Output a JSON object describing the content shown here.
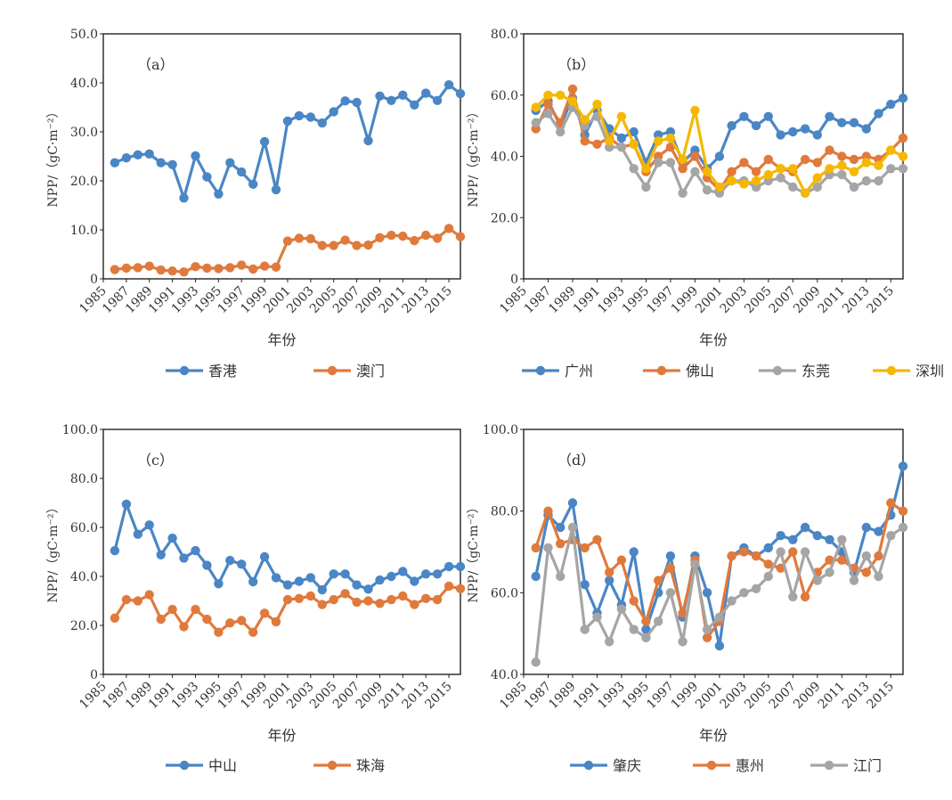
{
  "chart_data": [
    {
      "type": "line",
      "annotation": "（a）",
      "xlabel": "年份",
      "ylabel": "NPP/（gC·m⁻²）",
      "x": [
        1986,
        1987,
        1988,
        1989,
        1990,
        1991,
        1992,
        1993,
        1994,
        1995,
        1996,
        1997,
        1998,
        1999,
        2000,
        2001,
        2002,
        2003,
        2004,
        2005,
        2006,
        2007,
        2008,
        2009,
        2010,
        2011,
        2012,
        2013,
        2014,
        2015,
        2016
      ],
      "ylim": [
        0,
        50
      ],
      "yticks": [
        "0",
        "10.0",
        "20.0",
        "30.0",
        "40.0",
        "50.0"
      ],
      "xticks": [
        1985,
        1987,
        1989,
        1991,
        1993,
        1995,
        1997,
        1999,
        2001,
        2003,
        2005,
        2007,
        2009,
        2011,
        2013,
        2015
      ],
      "legend": "bottom",
      "series": [
        {
          "name": "香港",
          "color": "#4a86c5",
          "values": [
            23.7,
            24.7,
            25.3,
            25.5,
            23.7,
            23.3,
            16.5,
            25.1,
            20.8,
            17.3,
            23.7,
            21.8,
            19.3,
            28.0,
            18.2,
            32.2,
            33.3,
            33.0,
            31.8,
            34.1,
            36.3,
            36.0,
            28.2,
            37.3,
            36.4,
            37.5,
            35.5,
            37.9,
            36.4,
            39.6,
            37.8
          ]
        },
        {
          "name": "澳门",
          "color": "#e07a3c",
          "values": [
            1.9,
            2.2,
            2.3,
            2.6,
            1.8,
            1.6,
            1.4,
            2.5,
            2.2,
            2.1,
            2.3,
            2.8,
            2.0,
            2.6,
            2.4,
            7.7,
            8.3,
            8.2,
            6.8,
            6.8,
            7.9,
            6.8,
            6.9,
            8.4,
            8.9,
            8.7,
            7.8,
            8.9,
            8.3,
            10.3,
            8.6
          ]
        }
      ]
    },
    {
      "type": "line",
      "annotation": "（b）",
      "xlabel": "年份",
      "ylabel": "NPP/（gC·m⁻²）",
      "x": [
        1986,
        1987,
        1988,
        1989,
        1990,
        1991,
        1992,
        1993,
        1994,
        1995,
        1996,
        1997,
        1998,
        1999,
        2000,
        2001,
        2002,
        2003,
        2004,
        2005,
        2006,
        2007,
        2008,
        2009,
        2010,
        2011,
        2012,
        2013,
        2014,
        2015,
        2016
      ],
      "ylim": [
        0,
        80
      ],
      "yticks": [
        "0",
        "20.0",
        "40.0",
        "60.0",
        "80.0"
      ],
      "xticks": [
        1985,
        1987,
        1989,
        1991,
        1993,
        1995,
        1997,
        1999,
        2001,
        2003,
        2005,
        2007,
        2009,
        2011,
        2013,
        2015
      ],
      "legend": "bottom",
      "series": [
        {
          "name": "广州",
          "color": "#4a86c5",
          "values": [
            55,
            58,
            50,
            59,
            47,
            55,
            49,
            46,
            48,
            38,
            47,
            48,
            38,
            42,
            36,
            40,
            50,
            53,
            50,
            53,
            47,
            48,
            49,
            47,
            53,
            51,
            51,
            49,
            54,
            57,
            59
          ]
        },
        {
          "name": "佛山",
          "color": "#e07a3c",
          "values": [
            49,
            57,
            51,
            62,
            45,
            44,
            46,
            43,
            44,
            35,
            40,
            43,
            36,
            40,
            33,
            29,
            35,
            38,
            35,
            39,
            36,
            35,
            39,
            38,
            42,
            40,
            39,
            40,
            39,
            42,
            46
          ]
        },
        {
          "name": "东莞",
          "color": "#a5a5a5",
          "values": [
            51,
            54,
            48,
            56,
            50,
            53,
            43,
            43,
            36,
            30,
            38,
            38,
            28,
            35,
            29,
            28,
            32,
            32,
            30,
            32,
            33,
            30,
            28,
            30,
            34,
            34,
            30,
            32,
            32,
            36,
            36
          ]
        },
        {
          "name": "深圳",
          "color": "#f5b800",
          "values": [
            56,
            60,
            60,
            58,
            52,
            57,
            45,
            53,
            44,
            36,
            45,
            46,
            39,
            55,
            35,
            30,
            32,
            31,
            32,
            34,
            36,
            36,
            28,
            33,
            36,
            37,
            35,
            38,
            37,
            42,
            40
          ]
        }
      ]
    },
    {
      "type": "line",
      "annotation": "（c）",
      "xlabel": "年份",
      "ylabel": "NPP/（gC·m⁻²）",
      "x": [
        1986,
        1987,
        1988,
        1989,
        1990,
        1991,
        1992,
        1993,
        1994,
        1995,
        1996,
        1997,
        1998,
        1999,
        2000,
        2001,
        2002,
        2003,
        2004,
        2005,
        2006,
        2007,
        2008,
        2009,
        2010,
        2011,
        2012,
        2013,
        2014,
        2015,
        2016
      ],
      "ylim": [
        0,
        100
      ],
      "yticks": [
        "0",
        "20.0",
        "40.0",
        "60.0",
        "80.0",
        "100.0"
      ],
      "xticks": [
        1985,
        1987,
        1989,
        1991,
        1993,
        1995,
        1997,
        1999,
        2001,
        2003,
        2005,
        2007,
        2009,
        2011,
        2013,
        2015
      ],
      "legend": "bottom",
      "series": [
        {
          "name": "中山",
          "color": "#4a86c5",
          "values": [
            50.5,
            69.5,
            57.2,
            61.0,
            48.8,
            55.6,
            47.5,
            50.5,
            44.5,
            37.0,
            46.5,
            45.0,
            37.8,
            48.0,
            39.5,
            36.5,
            38.0,
            39.5,
            34.5,
            41.0,
            41.0,
            36.5,
            34.8,
            38.5,
            40.0,
            42.0,
            38.0,
            41.0,
            41.0,
            44.0,
            44.0
          ]
        },
        {
          "name": "珠海",
          "color": "#e07a3c",
          "values": [
            23.0,
            30.5,
            30.0,
            32.5,
            22.5,
            26.5,
            19.5,
            26.5,
            22.5,
            17.2,
            21.0,
            22.0,
            17.2,
            25.0,
            21.5,
            30.5,
            31.0,
            32.0,
            28.5,
            30.5,
            33.0,
            29.5,
            30.0,
            29.0,
            30.5,
            32.0,
            28.5,
            31.0,
            30.5,
            36.0,
            35.0
          ]
        }
      ]
    },
    {
      "type": "line",
      "annotation": "（d）",
      "xlabel": "年份",
      "ylabel": "NPP/（gC·m⁻²）",
      "x": [
        1986,
        1987,
        1988,
        1989,
        1990,
        1991,
        1992,
        1993,
        1994,
        1995,
        1996,
        1997,
        1998,
        1999,
        2000,
        2001,
        2002,
        2003,
        2004,
        2005,
        2006,
        2007,
        2008,
        2009,
        2010,
        2011,
        2012,
        2013,
        2014,
        2015,
        2016
      ],
      "ylim": [
        40,
        100
      ],
      "yticks": [
        "40.0",
        "60.0",
        "80.0",
        "100.0"
      ],
      "xticks": [
        1985,
        1987,
        1989,
        1991,
        1993,
        1995,
        1997,
        1999,
        2001,
        2003,
        2005,
        2007,
        2009,
        2011,
        2013,
        2015
      ],
      "legend": "bottom",
      "series": [
        {
          "name": "肇庆",
          "color": "#4a86c5",
          "values": [
            64,
            79,
            76,
            82,
            62,
            55,
            63,
            57,
            70,
            51,
            60,
            69,
            54,
            69,
            60,
            47,
            69,
            71,
            69,
            71,
            74,
            73,
            76,
            74,
            73,
            70,
            65,
            76,
            75,
            79,
            91
          ]
        },
        {
          "name": "惠州",
          "color": "#e07a3c",
          "values": [
            71,
            80,
            72,
            73,
            71,
            73,
            65,
            68,
            58,
            53,
            63,
            66,
            55,
            68,
            49,
            53,
            69,
            70,
            69,
            67,
            66,
            70,
            59,
            65,
            68,
            68,
            66,
            65,
            69,
            82,
            80
          ]
        },
        {
          "name": "江门",
          "color": "#a5a5a5",
          "values": [
            43,
            71,
            64,
            76,
            51,
            54,
            48,
            56,
            51,
            49,
            53,
            60,
            48,
            67,
            51,
            54,
            58,
            60,
            61,
            64,
            70,
            59,
            70,
            63,
            65,
            73,
            63,
            69,
            64,
            74,
            76
          ]
        }
      ]
    }
  ]
}
